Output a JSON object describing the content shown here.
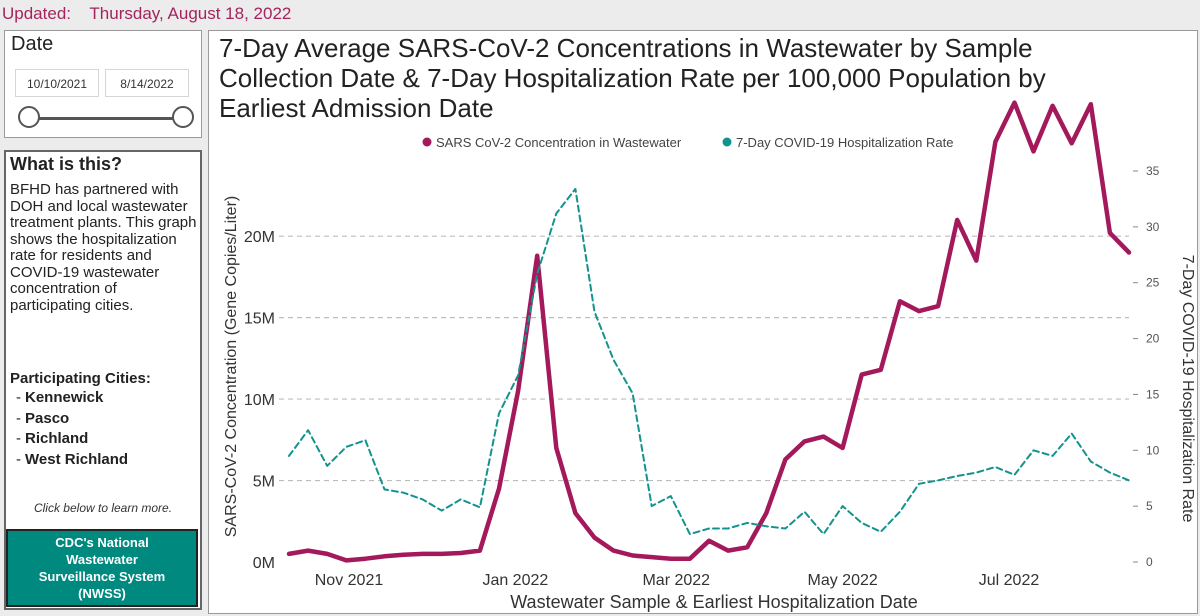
{
  "updated": {
    "label": "Updated:",
    "date": "Thursday, August 18, 2022"
  },
  "date_filter": {
    "title": "Date",
    "start": "10/10/2021",
    "end": "8/14/2022",
    "range_fraction": [
      0.0,
      1.0
    ]
  },
  "info": {
    "title": "What is this?",
    "text": "BFHD has partnered with DOH and local wastewater treatment plants. This graph shows the hospitalization rate for residents and COVID-19 wastewater concentration of participating cities.",
    "cities_label": "Participating Cities:",
    "cities": [
      "Kennewick",
      "Pasco",
      "Richland",
      "West Richland"
    ],
    "click_note": "Click below to learn more.",
    "button_label": "CDC's National Wastewater Surveillance System (NWSS)"
  },
  "colors": {
    "wastewater": "#a3195b",
    "hospitalization": "#13938f",
    "updated_text": "#a3245e",
    "button": "#00897f"
  },
  "chart_data": {
    "type": "line",
    "title": "7-Day Average SARS-CoV-2 Concentrations in Wastewater by Sample Collection Date & 7-Day Hospitalization Rate per 100,000 Population by Earliest Admission Date",
    "xlabel": "Wastewater Sample & Earliest Hospitalization Date",
    "ylabel_left": "SARS-CoV-2 Concentration (Gene Copies/Liter)",
    "ylabel_right": "7-Day COVID-19 Hospitalization Rate",
    "x_range": [
      "2021-10-10",
      "2022-08-14"
    ],
    "x_ticks": [
      {
        "date": "2021-11-01",
        "label": "Nov 2021"
      },
      {
        "date": "2022-01-01",
        "label": "Jan 2022"
      },
      {
        "date": "2022-03-01",
        "label": "Mar 2022"
      },
      {
        "date": "2022-05-01",
        "label": "May 2022"
      },
      {
        "date": "2022-07-01",
        "label": "Jul 2022"
      }
    ],
    "y_left": {
      "min": 0,
      "max": 24000000,
      "ticks": [
        0,
        5000000,
        10000000,
        15000000,
        20000000
      ],
      "tick_labels": [
        "0M",
        "5M",
        "10M",
        "15M",
        "20M"
      ]
    },
    "y_right": {
      "min": 0,
      "max": 35,
      "ticks": [
        0,
        5,
        10,
        15,
        20,
        25,
        30,
        35
      ],
      "tick_labels": [
        "0",
        "5",
        "10",
        "15",
        "20",
        "25",
        "30",
        "35"
      ]
    },
    "grid": "horizontal dashed",
    "legend_position": "top",
    "series": [
      {
        "name": "SARS CoV-2 Concentration in Wastewater",
        "axis": "left",
        "style": "solid",
        "x": [
          "2021-10-10",
          "2021-10-17",
          "2021-10-24",
          "2021-10-31",
          "2021-11-07",
          "2021-11-14",
          "2021-11-21",
          "2021-11-28",
          "2021-12-05",
          "2021-12-12",
          "2021-12-19",
          "2021-12-26",
          "2022-01-02",
          "2022-01-09",
          "2022-01-16",
          "2022-01-23",
          "2022-01-30",
          "2022-02-06",
          "2022-02-13",
          "2022-02-20",
          "2022-02-27",
          "2022-03-06",
          "2022-03-13",
          "2022-03-20",
          "2022-03-27",
          "2022-04-03",
          "2022-04-10",
          "2022-04-17",
          "2022-04-24",
          "2022-05-01",
          "2022-05-08",
          "2022-05-15",
          "2022-05-22",
          "2022-05-29",
          "2022-06-05",
          "2022-06-12",
          "2022-06-19",
          "2022-06-26",
          "2022-07-03",
          "2022-07-10",
          "2022-07-17",
          "2022-07-24",
          "2022-07-31",
          "2022-08-07",
          "2022-08-14"
        ],
        "values": [
          500000,
          700000,
          500000,
          100000,
          200000,
          350000,
          450000,
          500000,
          500000,
          550000,
          700000,
          4500000,
          10500000,
          18800000,
          7000000,
          3000000,
          1500000,
          700000,
          400000,
          300000,
          200000,
          200000,
          1300000,
          700000,
          900000,
          3000000,
          6300000,
          7400000,
          7700000,
          7000000,
          11500000,
          11800000,
          16000000,
          15400000,
          15700000,
          21000000,
          18500000,
          25800000,
          28200000,
          25200000,
          28000000,
          25700000,
          28100000,
          20200000,
          19000000
        ]
      },
      {
        "name": "7-Day COVID-19 Hospitalization Rate",
        "axis": "right",
        "style": "dashed",
        "x": [
          "2021-10-10",
          "2021-10-17",
          "2021-10-24",
          "2021-10-31",
          "2021-11-07",
          "2021-11-14",
          "2021-11-21",
          "2021-11-28",
          "2021-12-05",
          "2021-12-12",
          "2021-12-19",
          "2021-12-26",
          "2022-01-02",
          "2022-01-09",
          "2022-01-16",
          "2022-01-23",
          "2022-01-30",
          "2022-02-06",
          "2022-02-13",
          "2022-02-20",
          "2022-02-27",
          "2022-03-06",
          "2022-03-13",
          "2022-03-20",
          "2022-03-27",
          "2022-04-03",
          "2022-04-10",
          "2022-04-17",
          "2022-04-24",
          "2022-05-01",
          "2022-05-08",
          "2022-05-15",
          "2022-05-22",
          "2022-05-29",
          "2022-06-05",
          "2022-06-12",
          "2022-06-19",
          "2022-06-26",
          "2022-07-03",
          "2022-07-10",
          "2022-07-17",
          "2022-07-24",
          "2022-07-31",
          "2022-08-07",
          "2022-08-14"
        ],
        "values": [
          9.5,
          11.8,
          8.6,
          10.3,
          10.9,
          6.5,
          6.2,
          5.6,
          4.6,
          5.6,
          4.9,
          13.3,
          16.7,
          25.8,
          31.2,
          33.4,
          22.4,
          18.1,
          15.1,
          5.0,
          5.9,
          2.5,
          3.0,
          3.0,
          3.5,
          3.2,
          3.0,
          4.5,
          2.5,
          5.0,
          3.5,
          2.7,
          4.5,
          7.0,
          7.3,
          7.7,
          8.0,
          8.5,
          7.8,
          10.0,
          9.5,
          11.5,
          9.0,
          8.0,
          7.3
        ]
      }
    ]
  }
}
